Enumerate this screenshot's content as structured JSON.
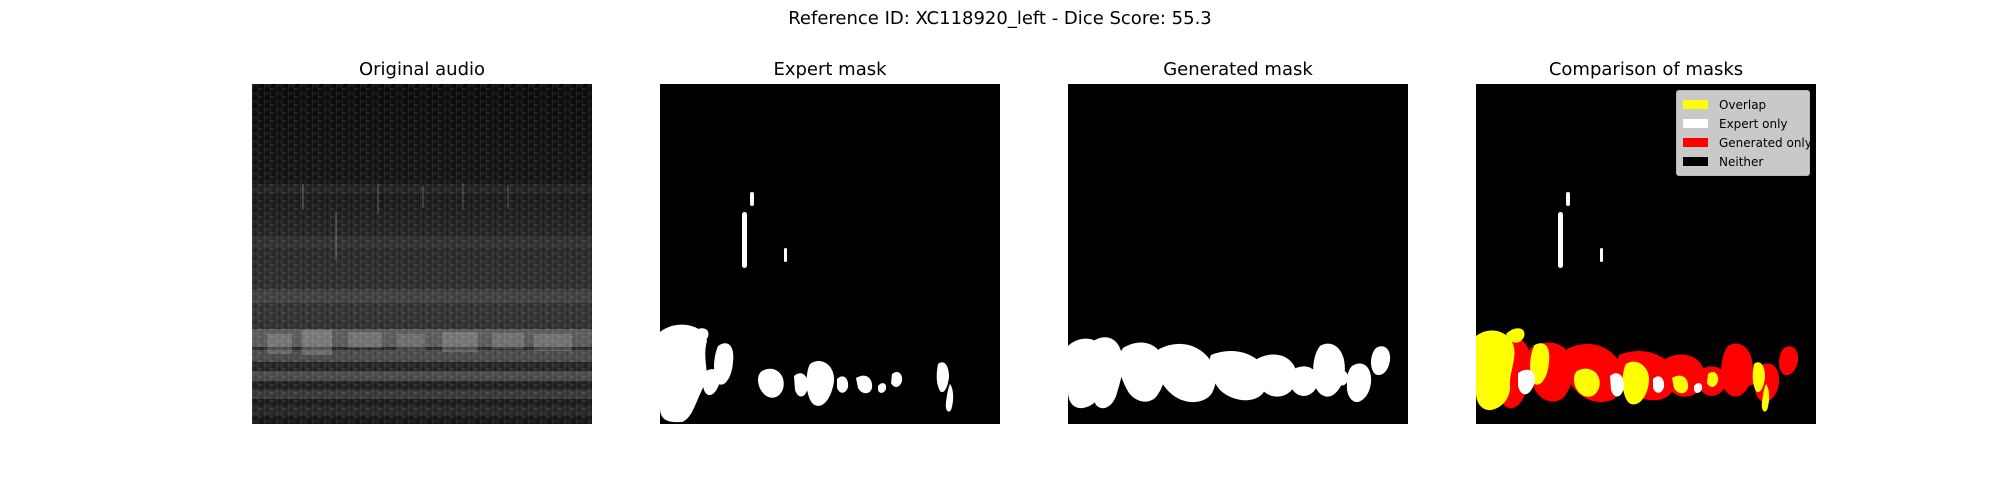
{
  "figure": {
    "suptitle": "Reference ID: XC118920_left - Dice Score: 55.3"
  },
  "panels": [
    {
      "title": "Original audio"
    },
    {
      "title": "Expert mask"
    },
    {
      "title": "Generated mask"
    },
    {
      "title": "Comparison of masks"
    }
  ],
  "legend": {
    "entries": [
      {
        "label": "Overlap",
        "color": "#ffff00"
      },
      {
        "label": "Expert only",
        "color": "#ffffff"
      },
      {
        "label": "Generated only",
        "color": "#ff0000"
      },
      {
        "label": "Neither",
        "color": "#000000"
      }
    ]
  },
  "colors": {
    "background": "#000000",
    "mask": "#ffffff",
    "overlap": "#ffff00",
    "expert_only": "#ffffff",
    "generated_only": "#ff0000"
  }
}
